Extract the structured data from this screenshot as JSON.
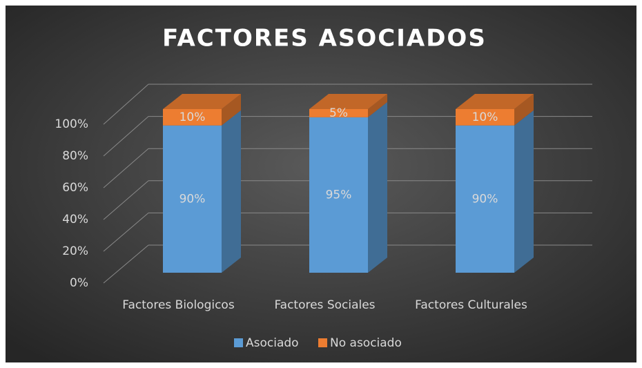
{
  "chart_data": {
    "type": "bar3d-stacked",
    "title": "FACTORES ASOCIADOS",
    "categories": [
      "Factores Biologicos",
      "Factores Sociales",
      "Factores Culturales"
    ],
    "series": [
      {
        "name": "Asociado",
        "color": "#5b9bd5",
        "values": [
          90,
          95,
          90
        ],
        "value_labels": [
          "90%",
          "95%",
          "90%"
        ]
      },
      {
        "name": "No asociado",
        "color": "#ed7d31",
        "values": [
          10,
          5,
          10
        ],
        "value_labels": [
          "10%",
          "5%",
          "10%"
        ]
      }
    ],
    "ylim": [
      0,
      100
    ],
    "yticks": [
      {
        "value": 0,
        "label": "0%"
      },
      {
        "value": 20,
        "label": "20%"
      },
      {
        "value": 40,
        "label": "40%"
      },
      {
        "value": 60,
        "label": "60%"
      },
      {
        "value": 80,
        "label": "80%"
      },
      {
        "value": 100,
        "label": "100%"
      }
    ],
    "grid": true,
    "legend": "bottom"
  }
}
